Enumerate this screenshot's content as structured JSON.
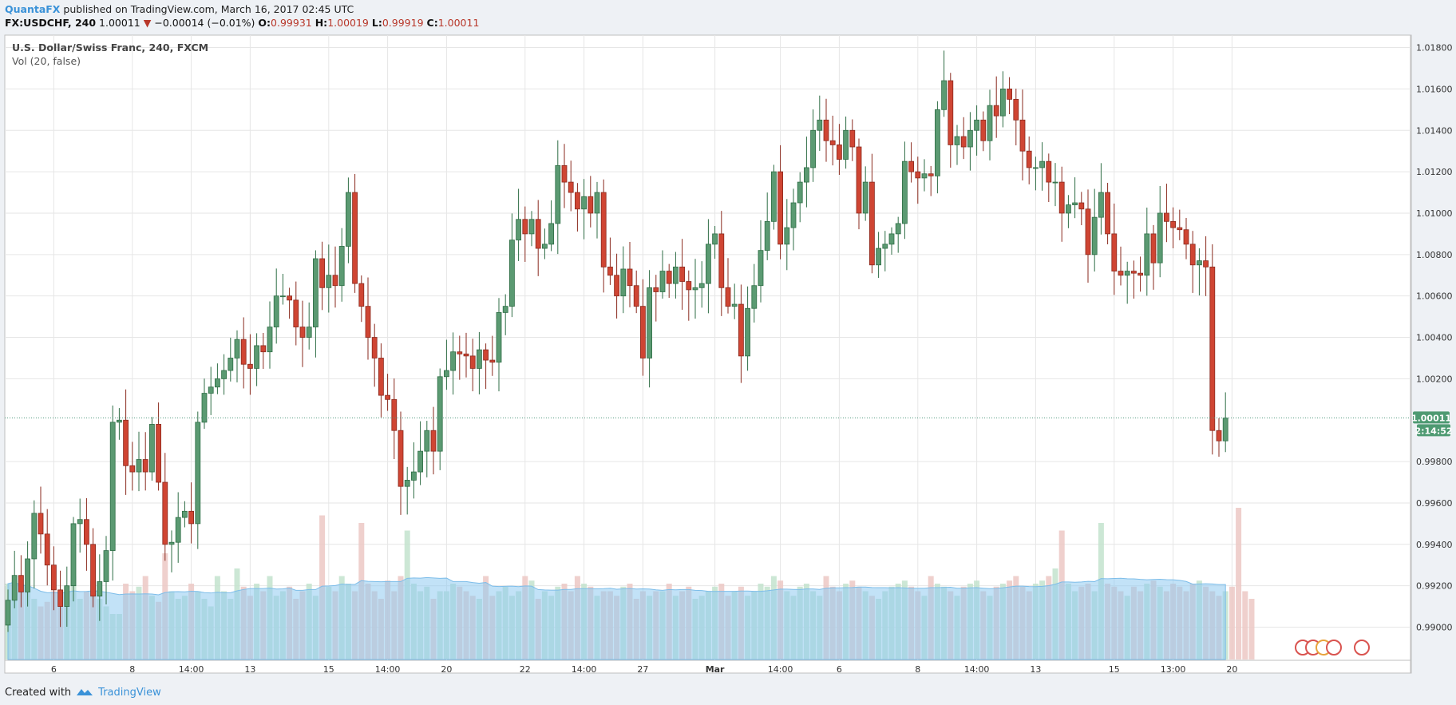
{
  "header": {
    "publisher": "QuantaFX",
    "published_text": " published on TradingView.com, March 16, 2017 02:45 UTC"
  },
  "quote": {
    "symbol": "FX:USDCHF, 240",
    "last": "1.00011",
    "change": "−0.00014 (−0.01%)",
    "open_label": "O:",
    "open": "0.99931",
    "high_label": "H:",
    "high": "1.00019",
    "low_label": "L:",
    "low": "0.99919",
    "close_label": "C:",
    "close": "1.00011"
  },
  "legend": {
    "title": "U.S. Dollar/Swiss Franc, 240, FXCM",
    "volume": "Vol (20, false)"
  },
  "price_tag": {
    "price": "1.00011",
    "countdown": "2:14:52"
  },
  "footer": {
    "created_with": "Created with",
    "brand": "TradingView"
  },
  "colors": {
    "up_fill": "#5b9a72",
    "up_border": "#2f6e46",
    "down_fill": "#cf4533",
    "down_border": "#8a2a1e",
    "vol_up": "#c3e3ce",
    "vol_down": "#ecc8c4",
    "vol_ma": "#8fcaf1",
    "grid": "#e6e6e6",
    "last_line": "#4f9a7f",
    "accent": "#3a92d8"
  },
  "chart_data": {
    "type": "candlestick",
    "title": "U.S. Dollar/Swiss Franc, 240, FXCM",
    "y_ticks": [
      "1.01800",
      "1.01600",
      "1.01400",
      "1.01200",
      "1.01000",
      "1.00800",
      "1.00600",
      "1.00400",
      "1.00200",
      "0.99800",
      "0.99600",
      "0.99400",
      "0.99200",
      "0.99000"
    ],
    "ylim": [
      0.9884,
      1.0186
    ],
    "x_ticks": [
      {
        "label": "6",
        "bar": 7
      },
      {
        "label": "8",
        "bar": 19
      },
      {
        "label": "14:00",
        "bar": 28
      },
      {
        "label": "13",
        "bar": 37
      },
      {
        "label": "15",
        "bar": 49
      },
      {
        "label": "14:00",
        "bar": 58
      },
      {
        "label": "20",
        "bar": 67
      },
      {
        "label": "22",
        "bar": 79
      },
      {
        "label": "14:00",
        "bar": 88
      },
      {
        "label": "27",
        "bar": 97
      },
      {
        "label": "Mar",
        "bar": 108,
        "bold": true
      },
      {
        "label": "14:00",
        "bar": 118
      },
      {
        "label": "6",
        "bar": 127
      },
      {
        "label": "8",
        "bar": 139
      },
      {
        "label": "14:00",
        "bar": 148
      },
      {
        "label": "13",
        "bar": 157
      },
      {
        "label": "15",
        "bar": 169
      },
      {
        "label": "13:00",
        "bar": 178
      },
      {
        "label": "20",
        "bar": 187
      }
    ],
    "last_price": 1.00011,
    "series": [
      {
        "name": "USDCHF",
        "close": [
          0.9913,
          0.9925,
          0.9917,
          0.9933,
          0.9955,
          0.9945,
          0.993,
          0.9918,
          0.991,
          0.992,
          0.995,
          0.9952,
          0.994,
          0.9915,
          0.9922,
          0.9937,
          0.9999,
          1.0,
          0.9978,
          0.9975,
          0.9981,
          0.9975,
          0.9998,
          0.997,
          0.994,
          0.9941,
          0.9953,
          0.9956,
          0.995,
          0.9999,
          1.0013,
          1.0016,
          1.002,
          1.0024,
          1.003,
          1.0039,
          1.0027,
          1.0025,
          1.0036,
          1.0033,
          1.0045,
          1.006,
          1.006,
          1.0058,
          1.0045,
          1.004,
          1.0045,
          1.0078,
          1.0064,
          1.007,
          1.0065,
          1.0084,
          1.011,
          1.0066,
          1.0055,
          1.004,
          1.003,
          1.0012,
          1.001,
          0.9995,
          0.9968,
          0.9971,
          0.9975,
          0.9985,
          0.9995,
          0.9985,
          1.0021,
          1.0024,
          1.0033,
          1.0032,
          1.0031,
          1.0025,
          1.0034,
          1.0029,
          1.0028,
          1.0052,
          1.0055,
          1.0087,
          1.0097,
          1.009,
          1.0097,
          1.0083,
          1.0085,
          1.0095,
          1.0123,
          1.0115,
          1.011,
          1.0102,
          1.0108,
          1.01,
          1.011,
          1.0074,
          1.007,
          1.006,
          1.0073,
          1.0065,
          1.0055,
          1.003,
          1.0064,
          1.0062,
          1.0072,
          1.0066,
          1.0074,
          1.0067,
          1.0063,
          1.0064,
          1.0066,
          1.0085,
          1.009,
          1.0064,
          1.0055,
          1.0056,
          1.0031,
          1.0054,
          1.0065,
          1.0082,
          1.0096,
          1.012,
          1.0085,
          1.0093,
          1.0105,
          1.0115,
          1.0122,
          1.014,
          1.0145,
          1.0135,
          1.0133,
          1.0126,
          1.014,
          1.0132,
          1.01,
          1.0115,
          1.0075,
          1.0083,
          1.0085,
          1.009,
          1.0095,
          1.0125,
          1.012,
          1.0117,
          1.0119,
          1.0118,
          1.015,
          1.0164,
          1.0133,
          1.0137,
          1.0132,
          1.014,
          1.0145,
          1.0135,
          1.0152,
          1.0147,
          1.016,
          1.0155,
          1.0145,
          1.013,
          1.0122,
          1.0122,
          1.0125,
          1.0115,
          1.0115,
          1.01,
          1.0104,
          1.0105,
          1.0102,
          1.008,
          1.0098,
          1.011,
          1.009,
          1.0072,
          1.007,
          1.0072,
          1.0071,
          1.007,
          1.009,
          1.0076,
          1.01,
          1.0096,
          1.0093,
          1.0092,
          1.0085,
          1.0075,
          1.0077,
          1.0074,
          0.9995,
          0.999,
          1.0001
        ]
      },
      {
        "name": "Volume",
        "values": [
          0.5,
          0.52,
          0.45,
          0.48,
          0.4,
          0.35,
          0.38,
          0.45,
          0.42,
          0.48,
          0.55,
          0.4,
          0.45,
          0.52,
          0.4,
          0.35,
          0.3,
          0.3,
          0.5,
          0.45,
          0.48,
          0.55,
          0.42,
          0.38,
          0.7,
          0.45,
          0.4,
          0.42,
          0.5,
          0.45,
          0.4,
          0.35,
          0.55,
          0.45,
          0.4,
          0.6,
          0.48,
          0.42,
          0.5,
          0.45,
          0.55,
          0.42,
          0.45,
          0.48,
          0.4,
          0.45,
          0.5,
          0.42,
          0.95,
          0.48,
          0.45,
          0.55,
          0.5,
          0.45,
          0.9,
          0.5,
          0.45,
          0.4,
          0.52,
          0.45,
          0.55,
          0.85,
          0.5,
          0.45,
          0.48,
          0.4,
          0.45,
          0.45,
          0.5,
          0.48,
          0.45,
          0.42,
          0.4,
          0.55,
          0.42,
          0.45,
          0.48,
          0.42,
          0.45,
          0.55,
          0.52,
          0.4,
          0.45,
          0.42,
          0.48,
          0.5,
          0.45,
          0.55,
          0.5,
          0.48,
          0.42,
          0.45,
          0.45,
          0.42,
          0.48,
          0.5,
          0.4,
          0.45,
          0.42,
          0.45,
          0.45,
          0.5,
          0.42,
          0.45,
          0.48,
          0.4,
          0.42,
          0.45,
          0.48,
          0.5,
          0.42,
          0.45,
          0.48,
          0.42,
          0.45,
          0.5,
          0.48,
          0.55,
          0.52,
          0.45,
          0.42,
          0.48,
          0.5,
          0.45,
          0.42,
          0.55,
          0.48,
          0.45,
          0.5,
          0.52,
          0.48,
          0.45,
          0.42,
          0.4,
          0.45,
          0.48,
          0.5,
          0.52,
          0.48,
          0.45,
          0.42,
          0.55,
          0.5,
          0.48,
          0.45,
          0.42,
          0.48,
          0.5,
          0.52,
          0.45,
          0.42,
          0.48,
          0.5,
          0.52,
          0.55,
          0.48,
          0.45,
          0.5,
          0.52,
          0.55,
          0.6,
          0.85,
          0.5,
          0.45,
          0.48,
          0.5,
          0.45,
          0.9,
          0.5,
          0.48,
          0.45,
          0.42,
          0.48,
          0.45,
          0.5,
          0.52,
          0.48,
          0.45,
          0.5,
          0.48,
          0.45,
          0.5,
          0.52,
          0.48,
          0.45,
          0.42,
          0.45,
          0.48,
          1.0,
          0.45,
          0.4
        ]
      }
    ]
  }
}
